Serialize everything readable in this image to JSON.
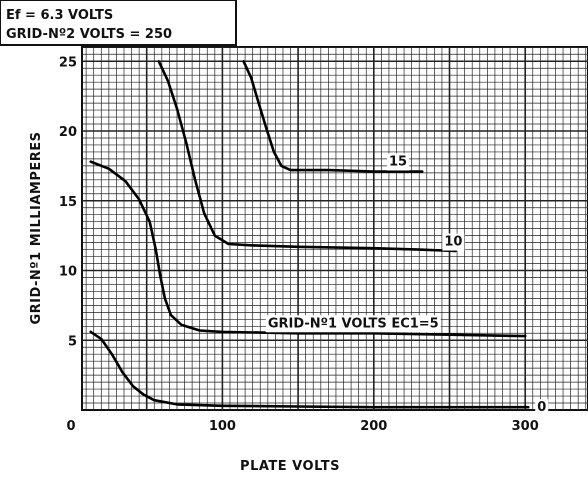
{
  "chart_data": {
    "type": "line",
    "title": "",
    "xlabel": "PLATE VOLTS",
    "ylabel": "GRID-Nº1 MILLIAMPERES",
    "xlim": [
      0,
      340
    ],
    "ylim": [
      0,
      27
    ],
    "grid": true,
    "x_ticks": [
      "0",
      "100",
      "200",
      "300"
    ],
    "y_ticks": [
      "5",
      "10",
      "15",
      "20",
      "25"
    ],
    "notes": {
      "line1": "Ef = 6.3 VOLTS",
      "line2": "GRID-Nº2  VOLTS = 250"
    },
    "series": [
      {
        "name": "0",
        "values": [
          [
            13,
            5.6
          ],
          [
            20,
            5.1
          ],
          [
            27,
            4.0
          ],
          [
            34,
            2.7
          ],
          [
            41,
            1.7
          ],
          [
            48,
            1.1
          ],
          [
            55,
            0.7
          ],
          [
            70,
            0.4
          ],
          [
            100,
            0.3
          ],
          [
            150,
            0.25
          ],
          [
            200,
            0.2
          ],
          [
            250,
            0.2
          ],
          [
            302,
            0.2
          ]
        ]
      },
      {
        "name": "GRID-Nº1 VOLTS EC1=5",
        "values": [
          [
            13,
            17.8
          ],
          [
            25,
            17.3
          ],
          [
            36,
            16.4
          ],
          [
            45,
            15.1
          ],
          [
            52,
            13.5
          ],
          [
            56,
            11.5
          ],
          [
            59,
            9.6
          ],
          [
            62,
            8.0
          ],
          [
            66,
            6.8
          ],
          [
            73,
            6.1
          ],
          [
            85,
            5.7
          ],
          [
            100,
            5.6
          ],
          [
            150,
            5.5
          ],
          [
            200,
            5.5
          ],
          [
            250,
            5.4
          ],
          [
            300,
            5.3
          ]
        ]
      },
      {
        "name": "10",
        "values": [
          [
            58,
            25.0
          ],
          [
            64,
            23.6
          ],
          [
            70,
            21.6
          ],
          [
            76,
            19.2
          ],
          [
            82,
            16.5
          ],
          [
            88,
            14.1
          ],
          [
            95,
            12.5
          ],
          [
            104,
            11.9
          ],
          [
            120,
            11.8
          ],
          [
            150,
            11.7
          ],
          [
            200,
            11.6
          ],
          [
            230,
            11.5
          ],
          [
            254,
            11.4
          ]
        ]
      },
      {
        "name": "15",
        "values": [
          [
            114,
            25.0
          ],
          [
            119,
            23.8
          ],
          [
            124,
            22.0
          ],
          [
            129,
            20.2
          ],
          [
            134,
            18.5
          ],
          [
            139,
            17.5
          ],
          [
            145,
            17.2
          ],
          [
            170,
            17.2
          ],
          [
            200,
            17.1
          ],
          [
            232,
            17.1
          ]
        ]
      }
    ]
  }
}
